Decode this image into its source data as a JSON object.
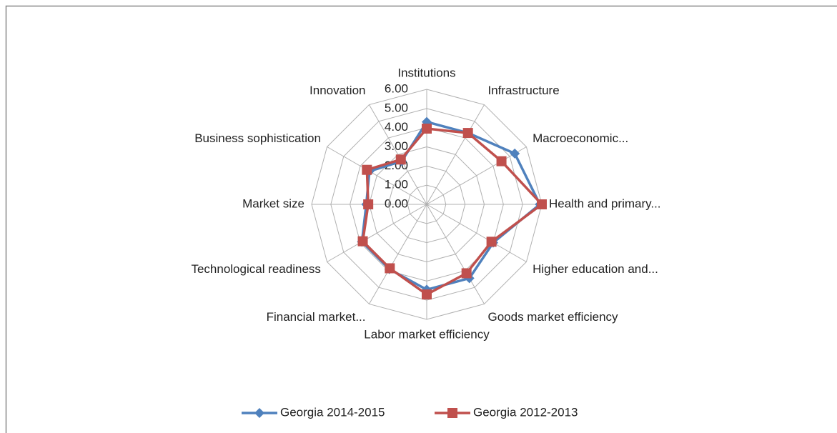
{
  "chart_data": {
    "type": "radar",
    "categories": [
      "Institutions",
      "Infrastructure",
      "Macroeconomic...",
      "Health and primary...",
      "Higher education and...",
      "Goods market efficiency",
      "Labor market efficiency",
      "Financial market...",
      "Technological readiness",
      "Market size",
      "Business sophistication",
      "Innovation"
    ],
    "series": [
      {
        "name": "Georgia 2014-2015",
        "color": "#4f81bd",
        "marker": "diamond",
        "values": [
          4.3,
          4.3,
          5.3,
          5.9,
          4.0,
          4.45,
          4.45,
          3.9,
          3.9,
          3.15,
          3.45,
          2.6
        ]
      },
      {
        "name": "Georgia 2012-2013",
        "color": "#c0504d",
        "marker": "square",
        "values": [
          3.95,
          4.3,
          4.5,
          6.0,
          3.9,
          4.15,
          4.7,
          3.85,
          3.85,
          3.05,
          3.6,
          2.7
        ]
      }
    ],
    "ylim": [
      0,
      6
    ],
    "yticks": [
      {
        "value": 0,
        "label": "0.00"
      },
      {
        "value": 1,
        "label": "1.00"
      },
      {
        "value": 2,
        "label": "2.00"
      },
      {
        "value": 3,
        "label": "3.00"
      },
      {
        "value": 4,
        "label": "4.00"
      },
      {
        "value": 5,
        "label": "5.00"
      },
      {
        "value": 6,
        "label": "6.00"
      }
    ],
    "grid": true,
    "legend": "bottom"
  }
}
